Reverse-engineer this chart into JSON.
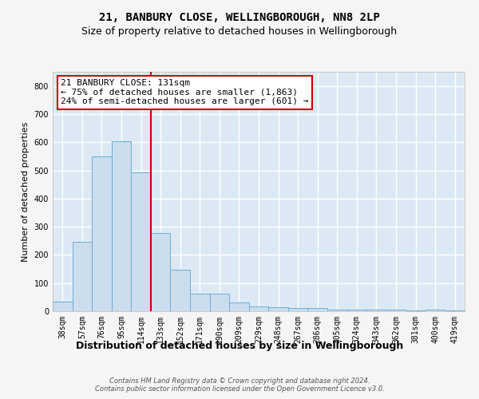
{
  "title1": "21, BANBURY CLOSE, WELLINGBOROUGH, NN8 2LP",
  "title2": "Size of property relative to detached houses in Wellingborough",
  "xlabel": "Distribution of detached houses by size in Wellingborough",
  "ylabel": "Number of detached properties",
  "footnote": "Contains HM Land Registry data © Crown copyright and database right 2024.\nContains public sector information licensed under the Open Government Licence v3.0.",
  "categories": [
    "38sqm",
    "57sqm",
    "76sqm",
    "95sqm",
    "114sqm",
    "133sqm",
    "152sqm",
    "171sqm",
    "190sqm",
    "209sqm",
    "229sqm",
    "248sqm",
    "267sqm",
    "286sqm",
    "305sqm",
    "324sqm",
    "343sqm",
    "362sqm",
    "381sqm",
    "400sqm",
    "419sqm"
  ],
  "values": [
    33,
    247,
    549,
    604,
    494,
    278,
    148,
    62,
    62,
    30,
    17,
    14,
    12,
    12,
    5,
    6,
    5,
    5,
    2,
    5,
    2
  ],
  "bar_color": "#ccdded",
  "bar_edge_color": "#6aaed6",
  "vline_color": "#cc0000",
  "vline_index": 4.5,
  "annotation_text": "21 BANBURY CLOSE: 131sqm\n← 75% of detached houses are smaller (1,863)\n24% of semi-detached houses are larger (601) →",
  "annotation_box_color": "#ffffff",
  "annotation_box_edge": "#cc0000",
  "ylim": [
    0,
    850
  ],
  "yticks": [
    0,
    100,
    200,
    300,
    400,
    500,
    600,
    700,
    800
  ],
  "fig_bg_color": "#f5f5f5",
  "plot_bg_color": "#dce9f5",
  "grid_color": "#ffffff",
  "title1_fontsize": 10,
  "title2_fontsize": 9,
  "xlabel_fontsize": 9,
  "ylabel_fontsize": 8,
  "tick_fontsize": 7,
  "annot_fontsize": 8,
  "footnote_fontsize": 6
}
